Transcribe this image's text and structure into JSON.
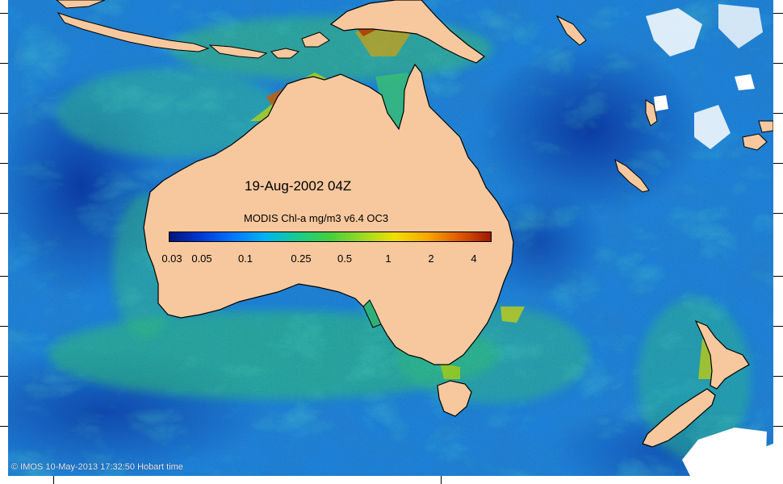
{
  "map": {
    "date_label": "19-Aug-2002 04Z",
    "colorbar": {
      "title": "MODIS Chl-a mg/m3 v6.4 OC3",
      "tick_labels": [
        "0.03",
        "0.05",
        "0.1",
        "0.25",
        "0.5",
        "1",
        "2",
        "4"
      ],
      "colors": [
        "#00157a",
        "#0039d6",
        "#0079ff",
        "#00b4f0",
        "#19cc8c",
        "#45d03c",
        "#9cd826",
        "#f0e000",
        "#f8a800",
        "#e05a00",
        "#a01800"
      ]
    },
    "credit": "© IMOS 10-May-2013 17:32:50 Hobart time",
    "colors": {
      "land": "#f7c89e",
      "ocean_blue": "#1a78d6",
      "coastal_green": "#30c070",
      "no_data": "#ffffff"
    }
  }
}
